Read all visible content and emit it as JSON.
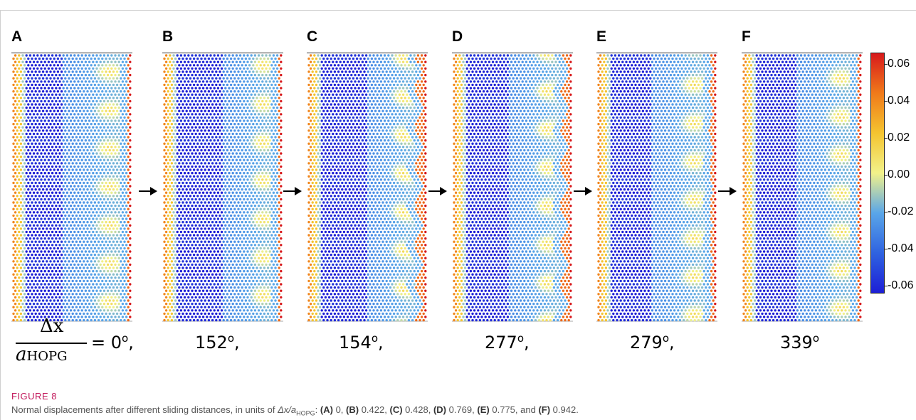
{
  "panels": [
    {
      "letter": "A",
      "angle": "0",
      "blue_band": [
        0.11,
        0.42
      ],
      "bump_depth": 0.0
    },
    {
      "letter": "B",
      "angle": "152",
      "blue_band": [
        0.11,
        0.5
      ],
      "bump_depth": 0.0
    },
    {
      "letter": "C",
      "angle": "154",
      "blue_band": [
        0.11,
        0.5
      ],
      "bump_depth": 0.07
    },
    {
      "letter": "D",
      "angle": "277",
      "blue_band": [
        0.11,
        0.47
      ],
      "bump_depth": 0.06
    },
    {
      "letter": "E",
      "angle": "279",
      "blue_band": [
        0.11,
        0.45
      ],
      "bump_depth": 0.02
    },
    {
      "letter": "F",
      "angle": "339",
      "blue_band": [
        0.11,
        0.45
      ],
      "bump_depth": 0.0
    }
  ],
  "angle_suffix_first": "o,",
  "fraction": {
    "numerator": "Δx",
    "denominator_var": "a",
    "denominator_sub": "HOPG",
    "equals": "= 0"
  },
  "angles": {
    "a": "0",
    "b": "152",
    "c": "154",
    "d": "277",
    "e": "279",
    "f": "339"
  },
  "angle_sup": "o",
  "angle_comma": ",",
  "colorbar": {
    "labels": [
      "0.06",
      "0.04",
      "0.02",
      "0.00",
      "-0.02",
      "-0.04",
      "-0.06"
    ],
    "colors": [
      "#d7191c",
      "#f07a1a",
      "#f4c430",
      "#f2f28a",
      "#5aa6e8",
      "#2f63e0",
      "#1d1fd6"
    ]
  },
  "caption": {
    "title": "FIGURE 8",
    "lead": "Normal displacements after different sliding distances, in units of ",
    "unit_var": "Δx/a",
    "unit_sub": "HOPG",
    "items": [
      {
        "tag": "(A)",
        "value": "0"
      },
      {
        "tag": "(B)",
        "value": "0.422"
      },
      {
        "tag": "(C)",
        "value": "0.428"
      },
      {
        "tag": "(D)",
        "value": "0.769"
      },
      {
        "tag": "(E)",
        "value": "0.775"
      },
      {
        "tag": "(F)",
        "value": "0.942"
      }
    ]
  }
}
